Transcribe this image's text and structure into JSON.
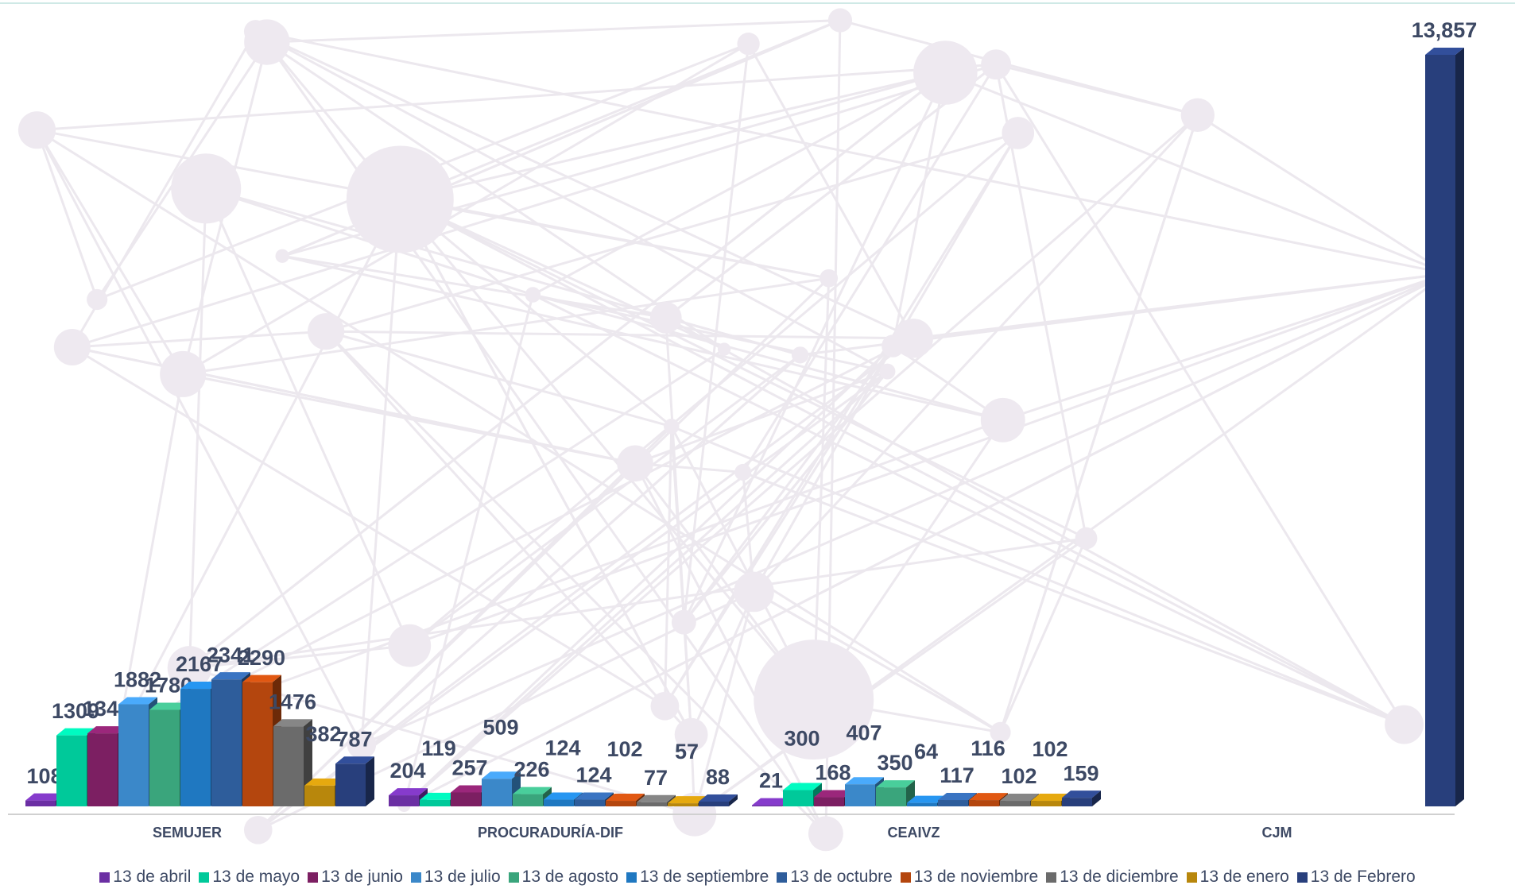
{
  "chart_data": {
    "type": "bar3d",
    "categories": [
      "SEMUJER",
      "PROCURADURÍA-DIF",
      "CEAIVZ",
      "CJM"
    ],
    "series": [
      {
        "name": "13 de abril",
        "color": "#6b2fa3",
        "values": [
          108,
          204,
          21,
          null
        ]
      },
      {
        "name": "13 de mayo",
        "color": "#00c99a",
        "values": [
          1309,
          119,
          300,
          null
        ]
      },
      {
        "name": "13 de junio",
        "color": "#7c1f62",
        "values": [
          1346,
          257,
          168,
          null
        ]
      },
      {
        "name": "13 de julio",
        "color": "#3b88c9",
        "values": [
          1882,
          509,
          407,
          null
        ]
      },
      {
        "name": "13 de agosto",
        "color": "#3aa57c",
        "values": [
          1780,
          226,
          350,
          null
        ]
      },
      {
        "name": "13 de septiembre",
        "color": "#1f78c1",
        "values": [
          2167,
          124,
          64,
          null
        ]
      },
      {
        "name": "13 de octubre",
        "color": "#2e5d9b",
        "values": [
          2341,
          124,
          117,
          null
        ]
      },
      {
        "name": "13 de noviembre",
        "color": "#b4460e",
        "values": [
          2290,
          102,
          116,
          null
        ]
      },
      {
        "name": "13 de diciembre",
        "color": "#6b6b6b",
        "values": [
          1476,
          77,
          102,
          null
        ]
      },
      {
        "name": "13 de enero",
        "color": "#b8870c",
        "values": [
          382,
          57,
          102,
          null
        ]
      },
      {
        "name": "13 de Febrero",
        "color": "#283f7c",
        "values": [
          787,
          88,
          159,
          13857
        ],
        "value_labels": [
          "787",
          "88",
          "159",
          "13,857"
        ]
      }
    ]
  }
}
